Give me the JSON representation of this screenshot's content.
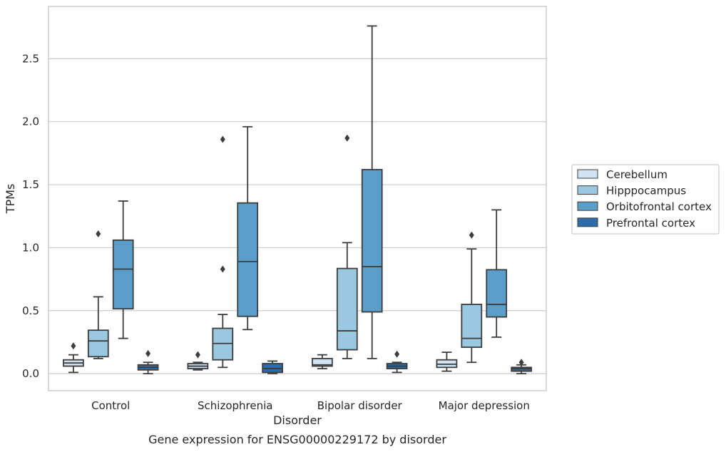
{
  "chart_data": {
    "type": "box",
    "caption": "Gene expression for ENSG00000229172 by disorder",
    "xlabel": "Disorder",
    "ylabel": "TPMs",
    "ylim": [
      -0.135,
      2.915
    ],
    "yticks": [
      0.0,
      0.5,
      1.0,
      1.5,
      2.0,
      2.5
    ],
    "ytick_labels": [
      "0.0",
      "0.5",
      "1.0",
      "1.5",
      "2.0",
      "2.5"
    ],
    "grid": true,
    "legend_position": "right",
    "categories": [
      "Control",
      "Schizophrenia",
      "Bipolar disorder",
      "Major depression"
    ],
    "series": [
      {
        "name": "Cerebellum",
        "color": "#d1e2f2",
        "boxes": [
          {
            "whislo": 0.01,
            "q1": 0.06,
            "med": 0.085,
            "q3": 0.11,
            "whishi": 0.15,
            "fliers": [
              0.22
            ]
          },
          {
            "whislo": 0.03,
            "q1": 0.04,
            "med": 0.06,
            "q3": 0.08,
            "whishi": 0.09,
            "fliers": [
              0.15
            ]
          },
          {
            "whislo": 0.04,
            "q1": 0.06,
            "med": 0.07,
            "q3": 0.12,
            "whishi": 0.15,
            "fliers": []
          },
          {
            "whislo": 0.02,
            "q1": 0.05,
            "med": 0.075,
            "q3": 0.11,
            "whishi": 0.17,
            "fliers": []
          }
        ]
      },
      {
        "name": "Hipppocampus",
        "color": "#9ac8e0",
        "boxes": [
          {
            "whislo": 0.12,
            "q1": 0.135,
            "med": 0.26,
            "q3": 0.345,
            "whishi": 0.61,
            "fliers": [
              1.11
            ]
          },
          {
            "whislo": 0.05,
            "q1": 0.11,
            "med": 0.24,
            "q3": 0.36,
            "whishi": 0.47,
            "fliers": [
              0.83,
              1.86
            ]
          },
          {
            "whislo": 0.12,
            "q1": 0.19,
            "med": 0.34,
            "q3": 0.835,
            "whishi": 1.04,
            "fliers": [
              1.87
            ]
          },
          {
            "whislo": 0.09,
            "q1": 0.21,
            "med": 0.28,
            "q3": 0.55,
            "whishi": 0.99,
            "fliers": [
              1.1
            ]
          }
        ]
      },
      {
        "name": "Orbitofrontal cortex",
        "color": "#5a9ec9",
        "boxes": [
          {
            "whislo": 0.28,
            "q1": 0.515,
            "med": 0.83,
            "q3": 1.06,
            "whishi": 1.37,
            "fliers": []
          },
          {
            "whislo": 0.35,
            "q1": 0.455,
            "med": 0.89,
            "q3": 1.355,
            "whishi": 1.96,
            "fliers": []
          },
          {
            "whislo": 0.12,
            "q1": 0.49,
            "med": 0.85,
            "q3": 1.62,
            "whishi": 2.76,
            "fliers": []
          },
          {
            "whislo": 0.29,
            "q1": 0.45,
            "med": 0.55,
            "q3": 0.825,
            "whishi": 1.3,
            "fliers": []
          }
        ]
      },
      {
        "name": "Prefrontal cortex",
        "color": "#2d6ca8",
        "boxes": [
          {
            "whislo": 0.0,
            "q1": 0.03,
            "med": 0.05,
            "q3": 0.07,
            "whishi": 0.09,
            "fliers": [
              0.16
            ]
          },
          {
            "whislo": 0.0,
            "q1": 0.01,
            "med": 0.04,
            "q3": 0.08,
            "whishi": 0.1,
            "fliers": []
          },
          {
            "whislo": 0.01,
            "q1": 0.04,
            "med": 0.06,
            "q3": 0.08,
            "whishi": 0.09,
            "fliers": [
              0.155
            ]
          },
          {
            "whislo": 0.0,
            "q1": 0.02,
            "med": 0.04,
            "q3": 0.05,
            "whishi": 0.07,
            "fliers": [
              0.09
            ]
          }
        ]
      }
    ]
  }
}
